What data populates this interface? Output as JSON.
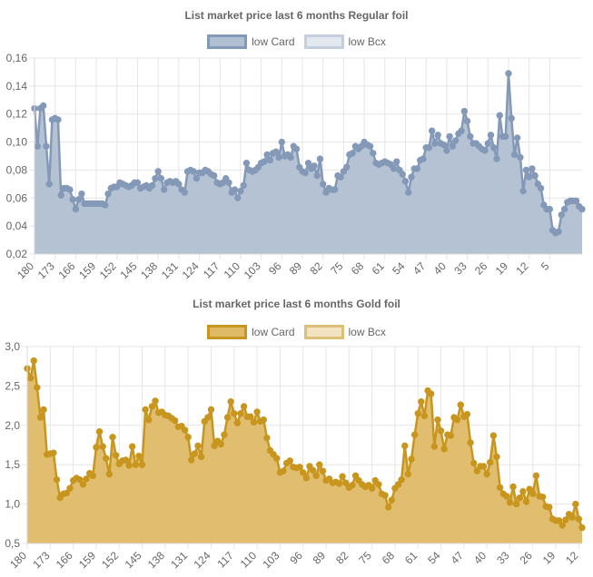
{
  "chart_data": [
    {
      "type": "line",
      "title": "List market price last 6 months Regular foil",
      "legend_position": "top",
      "grid": true,
      "area_fill": true,
      "colors": {
        "line": "#8499b8",
        "fill": "#b1bfd2",
        "card_swatch_fill": "#b1bfd2",
        "card_swatch_border": "#8499b8",
        "bcx_swatch_fill": "#e3e8ef",
        "bcx_swatch_border": "#c4cedc",
        "point": "#8499b8"
      },
      "ylim": [
        0.02,
        0.16
      ],
      "yticks": [
        "0,02",
        "0,04",
        "0,06",
        "0,08",
        "0,10",
        "0,12",
        "0,14",
        "0,16"
      ],
      "ytick_values": [
        0.02,
        0.04,
        0.06,
        0.08,
        0.1,
        0.12,
        0.14,
        0.16
      ],
      "x_start": 180,
      "x_end": 1,
      "xticks": [
        "180",
        "173",
        "166",
        "159",
        "152",
        "145",
        "138",
        "131",
        "124",
        "117",
        "110",
        "103",
        "96",
        "89",
        "82",
        "75",
        "68",
        "61",
        "54",
        "47",
        "40",
        "33",
        "26",
        "19",
        "12",
        "5"
      ],
      "series": [
        {
          "name": "low Card",
          "values": [
            0.124,
            0.097,
            0.124,
            0.126,
            0.097,
            0.07,
            0.116,
            0.117,
            0.116,
            0.062,
            0.067,
            0.067,
            0.066,
            0.059,
            0.052,
            0.059,
            0.063,
            0.056,
            0.056,
            0.056,
            0.056,
            0.056,
            0.056,
            0.056,
            0.055,
            0.063,
            0.067,
            0.068,
            0.068,
            0.071,
            0.07,
            0.069,
            0.068,
            0.069,
            0.071,
            0.071,
            0.067,
            0.068,
            0.069,
            0.067,
            0.069,
            0.074,
            0.079,
            0.074,
            0.066,
            0.071,
            0.072,
            0.071,
            0.072,
            0.07,
            0.066,
            0.064,
            0.079,
            0.08,
            0.079,
            0.074,
            0.078,
            0.078,
            0.08,
            0.079,
            0.077,
            0.076,
            0.071,
            0.07,
            0.071,
            0.074,
            0.071,
            0.064,
            0.066,
            0.06,
            0.065,
            0.069,
            0.085,
            0.08,
            0.079,
            0.08,
            0.082,
            0.085,
            0.086,
            0.091,
            0.087,
            0.092,
            0.093,
            0.089,
            0.1,
            0.09,
            0.091,
            0.089,
            0.097,
            0.095,
            0.082,
            0.079,
            0.078,
            0.085,
            0.081,
            0.083,
            0.076,
            0.088,
            0.07,
            0.064,
            0.067,
            0.066,
            0.066,
            0.076,
            0.075,
            0.079,
            0.082,
            0.091,
            0.092,
            0.097,
            0.095,
            0.097,
            0.1,
            0.098,
            0.097,
            0.092,
            0.085,
            0.084,
            0.085,
            0.086,
            0.085,
            0.084,
            0.081,
            0.086,
            0.08,
            0.077,
            0.072,
            0.064,
            0.075,
            0.081,
            0.081,
            0.087,
            0.088,
            0.096,
            0.096,
            0.108,
            0.099,
            0.105,
            0.099,
            0.098,
            0.094,
            0.104,
            0.097,
            0.101,
            0.106,
            0.108,
            0.122,
            0.115,
            0.104,
            0.099,
            0.099,
            0.097,
            0.095,
            0.094,
            0.099,
            0.105,
            0.096,
            0.088,
            0.119,
            0.104,
            0.104,
            0.149,
            0.117,
            0.091,
            0.103,
            0.089,
            0.065,
            0.08,
            0.075,
            0.081,
            0.076,
            0.07,
            0.067,
            0.055,
            0.052,
            0.052,
            0.037,
            0.035,
            0.036,
            0.048,
            0.052,
            0.057,
            0.058,
            0.058,
            0.058,
            0.054,
            0.052
          ]
        }
      ],
      "legend": [
        {
          "name": "low Card"
        },
        {
          "name": "low Bcx"
        }
      ]
    },
    {
      "type": "line",
      "title": "List market price last 6 months Gold foil",
      "legend_position": "top",
      "grid": true,
      "area_fill": true,
      "colors": {
        "line": "#c8961e",
        "fill": "#dfbb67",
        "card_swatch_fill": "#dfbb67",
        "card_swatch_border": "#c8961e",
        "bcx_swatch_fill": "#f1e3c1",
        "bcx_swatch_border": "#ddbf77",
        "point": "#c8961e"
      },
      "ylim": [
        0.5,
        3.0
      ],
      "yticks": [
        "0,5",
        "1,0",
        "1,5",
        "2,0",
        "2,5",
        "3,0"
      ],
      "ytick_values": [
        0.5,
        1.0,
        1.5,
        2.0,
        2.5,
        3.0
      ],
      "x_start": 180,
      "x_end": 1,
      "xticks": [
        "180",
        "173",
        "166",
        "159",
        "152",
        "145",
        "138",
        "131",
        "124",
        "117",
        "110",
        "103",
        "96",
        "89",
        "82",
        "75",
        "68",
        "61",
        "54",
        "47",
        "40",
        "33",
        "26",
        "19",
        "12",
        "5"
      ],
      "series": [
        {
          "name": "low Card",
          "values": [
            2.72,
            2.6,
            2.82,
            2.48,
            2.1,
            2.2,
            1.63,
            1.64,
            1.65,
            1.31,
            1.08,
            1.13,
            1.14,
            1.2,
            1.3,
            1.33,
            1.31,
            1.25,
            1.32,
            1.39,
            1.36,
            1.72,
            1.92,
            1.73,
            1.58,
            1.38,
            1.85,
            1.62,
            1.51,
            1.55,
            1.56,
            1.49,
            1.73,
            1.5,
            1.61,
            1.5,
            2.2,
            2.07,
            2.24,
            2.31,
            2.16,
            2.17,
            2.13,
            2.12,
            2.09,
            2.06,
            1.98,
            1.99,
            1.94,
            1.85,
            1.56,
            1.64,
            1.74,
            1.6,
            2.05,
            2.1,
            2.2,
            1.74,
            1.8,
            1.76,
            1.88,
            2.1,
            2.3,
            2.15,
            2.03,
            2.15,
            2.24,
            2.11,
            2.11,
            2.04,
            2.17,
            2.05,
            2.07,
            1.84,
            1.68,
            1.63,
            1.58,
            1.4,
            1.42,
            1.52,
            1.55,
            1.47,
            1.46,
            1.47,
            1.4,
            1.33,
            1.48,
            1.43,
            1.36,
            1.5,
            1.42,
            1.3,
            1.32,
            1.27,
            1.28,
            1.26,
            1.35,
            1.27,
            1.21,
            1.24,
            1.36,
            1.3,
            1.25,
            1.22,
            1.24,
            1.2,
            1.3,
            1.25,
            1.13,
            1.11,
            0.96,
            1.05,
            1.2,
            1.25,
            1.31,
            1.74,
            1.38,
            1.57,
            1.88,
            2.15,
            2.3,
            2.12,
            2.44,
            2.4,
            1.73,
            2.07,
            1.93,
            1.7,
            1.88,
            1.87,
            2.1,
            2.07,
            2.26,
            2.11,
            2.14,
            1.78,
            1.52,
            1.42,
            1.48,
            1.48,
            1.38,
            1.53,
            1.87,
            1.6,
            1.21,
            1.13,
            1.1,
            1.02,
            1.22,
            1.0,
            1.08,
            1.16,
            1.03,
            1.19,
            1.13,
            1.36,
            1.1,
            1.09,
            0.97,
            0.96,
            0.81,
            0.79,
            0.79,
            0.73,
            0.8,
            0.87,
            0.83,
            1.0,
            0.81,
            0.7
          ]
        }
      ],
      "legend": [
        {
          "name": "low Card"
        },
        {
          "name": "low Bcx"
        }
      ]
    }
  ]
}
